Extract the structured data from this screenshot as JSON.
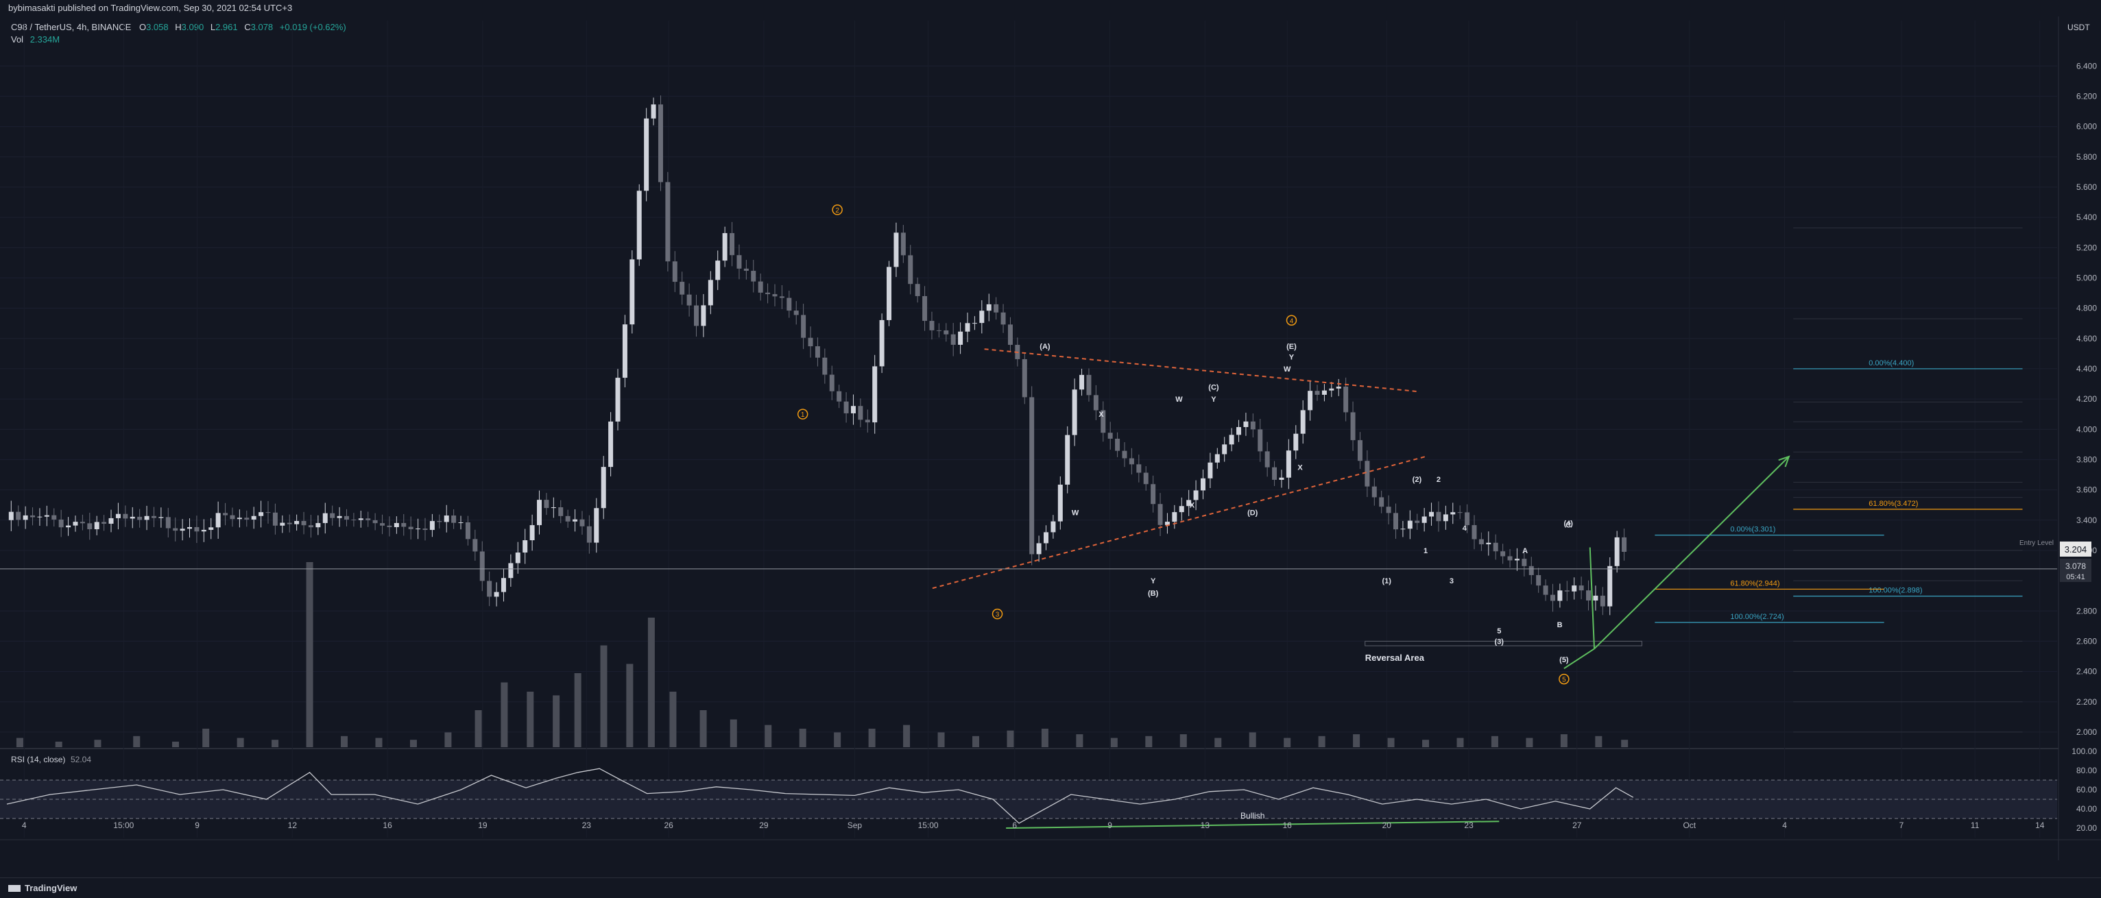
{
  "header": {
    "published": "bybimasakti published on TradingView.com, Sep 30, 2021 02:54 UTC+3"
  },
  "legend": {
    "symbol": "C98 / TetherUS, 4h, BINANCE",
    "open_label": "O",
    "open": "3.058",
    "high_label": "H",
    "high": "3.090",
    "low_label": "L",
    "low": "2.961",
    "close_label": "C",
    "close": "3.078",
    "change": "+0.019 (+0.62%)",
    "vol_label": "Vol",
    "vol": "2.334M"
  },
  "price_axis": {
    "currency": "USDT",
    "last_price": "3.078",
    "countdown": "05:41",
    "entry_price": "3.204",
    "entry_label": "Entry Level"
  },
  "footer": {
    "brand": "TradingView"
  },
  "colors": {
    "bg": "#131722",
    "up": "#d1d4dc",
    "down": "#6a6d78",
    "trendline": "#e0643a",
    "projection": "#5fbf5f",
    "fib_blue": "#3aa6c4",
    "fib_orange": "#f39c12",
    "wave_orange": "#f39c12"
  },
  "chart_data": {
    "type": "candlestick",
    "price_axis_range": [
      1.9,
      6.7
    ],
    "price_ticks": [
      "6.400",
      "6.200",
      "6.000",
      "5.800",
      "5.600",
      "5.400",
      "5.200",
      "5.000",
      "4.800",
      "4.600",
      "4.400",
      "4.200",
      "4.000",
      "3.800",
      "3.600",
      "3.400",
      "3.200",
      "2.800",
      "2.600",
      "2.400",
      "2.200",
      "2.000"
    ],
    "time_axis_range": [
      0,
      47.4
    ],
    "time_ticks": [
      {
        "t": 0.4,
        "label": "4"
      },
      {
        "t": 2.7,
        "label": "15:00"
      },
      {
        "t": 4.4,
        "label": "9"
      },
      {
        "t": 6.6,
        "label": "12"
      },
      {
        "t": 8.8,
        "label": "16"
      },
      {
        "t": 11,
        "label": "19"
      },
      {
        "t": 13.4,
        "label": "23"
      },
      {
        "t": 15.3,
        "label": "26"
      },
      {
        "t": 17.5,
        "label": "29"
      },
      {
        "t": 19.6,
        "label": "Sep"
      },
      {
        "t": 21.3,
        "label": "15:00"
      },
      {
        "t": 23.3,
        "label": "6"
      },
      {
        "t": 25.5,
        "label": "9"
      },
      {
        "t": 27.7,
        "label": "13"
      },
      {
        "t": 29.6,
        "label": "16"
      },
      {
        "t": 31.9,
        "label": "20"
      },
      {
        "t": 33.8,
        "label": "23"
      },
      {
        "t": 36.3,
        "label": "27"
      },
      {
        "t": 38.9,
        "label": "Oct"
      },
      {
        "t": 41.1,
        "label": "4"
      },
      {
        "t": 43.8,
        "label": "7"
      },
      {
        "t": 45.5,
        "label": "11"
      },
      {
        "t": 47,
        "label": "14"
      }
    ],
    "close_path": [
      [
        0,
        3.4
      ],
      [
        3.5,
        3.38
      ],
      [
        7,
        3.4
      ],
      [
        10.5,
        3.38
      ],
      [
        11.2,
        2.9
      ],
      [
        12.3,
        3.5
      ],
      [
        13.5,
        3.3
      ],
      [
        14.2,
        4.5
      ],
      [
        14.9,
        6.3
      ],
      [
        15.3,
        5.0
      ],
      [
        15.9,
        4.7
      ],
      [
        16.6,
        5.3
      ],
      [
        17.3,
        4.9
      ],
      [
        18,
        4.8
      ],
      [
        18.6,
        4.6
      ],
      [
        19.2,
        4.2
      ],
      [
        19.9,
        4.0
      ],
      [
        20.5,
        5.3
      ],
      [
        21.3,
        4.7
      ],
      [
        22,
        4.6
      ],
      [
        22.8,
        4.8
      ],
      [
        23.5,
        4.4
      ],
      [
        23.7,
        3.2
      ],
      [
        24.2,
        3.4
      ],
      [
        24.8,
        4.4
      ],
      [
        25.4,
        3.9
      ],
      [
        26.1,
        3.8
      ],
      [
        26.7,
        3.4
      ],
      [
        27.4,
        3.5
      ],
      [
        28.1,
        3.9
      ],
      [
        28.7,
        4.1
      ],
      [
        29.4,
        3.6
      ],
      [
        30.1,
        4.2
      ],
      [
        30.8,
        4.3
      ],
      [
        31.4,
        3.7
      ],
      [
        32.1,
        3.3
      ],
      [
        32.8,
        3.4
      ],
      [
        33.5,
        3.5
      ],
      [
        34.2,
        3.2
      ],
      [
        34.9,
        3.1
      ],
      [
        35.6,
        2.9
      ],
      [
        36.3,
        3.0
      ],
      [
        36.9,
        2.8
      ],
      [
        37.2,
        3.3
      ],
      [
        37.5,
        3.08
      ]
    ],
    "volume_bars": [
      [
        0.3,
        0.05
      ],
      [
        1.2,
        0.03
      ],
      [
        2.1,
        0.04
      ],
      [
        3,
        0.06
      ],
      [
        3.9,
        0.03
      ],
      [
        4.6,
        0.1
      ],
      [
        5.4,
        0.05
      ],
      [
        6.2,
        0.04
      ],
      [
        7,
        1.0
      ],
      [
        7.8,
        0.06
      ],
      [
        8.6,
        0.05
      ],
      [
        9.4,
        0.04
      ],
      [
        10.2,
        0.08
      ],
      [
        10.9,
        0.2
      ],
      [
        11.5,
        0.35
      ],
      [
        12.1,
        0.3
      ],
      [
        12.7,
        0.28
      ],
      [
        13.2,
        0.4
      ],
      [
        13.8,
        0.55
      ],
      [
        14.4,
        0.45
      ],
      [
        14.9,
        0.7
      ],
      [
        15.4,
        0.3
      ],
      [
        16.1,
        0.2
      ],
      [
        16.8,
        0.15
      ],
      [
        17.6,
        0.12
      ],
      [
        18.4,
        0.1
      ],
      [
        19.2,
        0.08
      ],
      [
        20,
        0.1
      ],
      [
        20.8,
        0.12
      ],
      [
        21.6,
        0.08
      ],
      [
        22.4,
        0.06
      ],
      [
        23.2,
        0.09
      ],
      [
        24,
        0.1
      ],
      [
        24.8,
        0.07
      ],
      [
        25.6,
        0.05
      ],
      [
        26.4,
        0.06
      ],
      [
        27.2,
        0.07
      ],
      [
        28,
        0.05
      ],
      [
        28.8,
        0.08
      ],
      [
        29.6,
        0.05
      ],
      [
        30.4,
        0.06
      ],
      [
        31.2,
        0.07
      ],
      [
        32,
        0.05
      ],
      [
        32.8,
        0.04
      ],
      [
        33.6,
        0.05
      ],
      [
        34.4,
        0.06
      ],
      [
        35.2,
        0.05
      ],
      [
        36,
        0.07
      ],
      [
        36.8,
        0.06
      ],
      [
        37.4,
        0.04
      ]
    ],
    "rsi": {
      "label": "RSI (14, close)",
      "value": "52.04",
      "ticks": [
        "100.00",
        "80.00",
        "60.00",
        "40.00",
        "20.00"
      ],
      "levels": [
        70,
        50,
        30
      ],
      "path": [
        [
          0,
          45
        ],
        [
          1,
          55
        ],
        [
          2,
          60
        ],
        [
          3,
          65
        ],
        [
          4,
          55
        ],
        [
          5,
          60
        ],
        [
          6,
          50
        ],
        [
          7,
          78
        ],
        [
          7.5,
          55
        ],
        [
          8.5,
          55
        ],
        [
          9.5,
          45
        ],
        [
          10.5,
          60
        ],
        [
          11.2,
          75
        ],
        [
          12,
          62
        ],
        [
          12.7,
          72
        ],
        [
          13.2,
          78
        ],
        [
          13.7,
          82
        ],
        [
          14.2,
          70
        ],
        [
          14.8,
          56
        ],
        [
          15.6,
          58
        ],
        [
          16.4,
          63
        ],
        [
          17.2,
          60
        ],
        [
          18,
          56
        ],
        [
          18.8,
          55
        ],
        [
          19.6,
          54
        ],
        [
          20.4,
          62
        ],
        [
          21.2,
          57
        ],
        [
          22,
          60
        ],
        [
          22.8,
          50
        ],
        [
          23.4,
          25
        ],
        [
          24,
          40
        ],
        [
          24.6,
          55
        ],
        [
          25.4,
          50
        ],
        [
          26.2,
          45
        ],
        [
          27,
          50
        ],
        [
          27.8,
          58
        ],
        [
          28.6,
          60
        ],
        [
          29.4,
          50
        ],
        [
          30.2,
          62
        ],
        [
          31,
          55
        ],
        [
          31.8,
          45
        ],
        [
          32.6,
          50
        ],
        [
          33.4,
          45
        ],
        [
          34.2,
          50
        ],
        [
          35,
          40
        ],
        [
          35.8,
          48
        ],
        [
          36.6,
          40
        ],
        [
          37.2,
          62
        ],
        [
          37.6,
          52
        ]
      ]
    },
    "trendlines": [
      {
        "kind": "triangle-top",
        "from": [
          22.6,
          4.53
        ],
        "to": [
          32.6,
          4.25
        ]
      },
      {
        "kind": "triangle-bottom",
        "from": [
          21.4,
          2.95
        ],
        "to": [
          32.8,
          3.82
        ]
      },
      {
        "kind": "projection",
        "from": [
          36.0,
          2.42
        ],
        "to": [
          36.7,
          2.55
        ]
      },
      {
        "kind": "projection",
        "from": [
          36.7,
          2.55
        ],
        "to": [
          41.2,
          3.82
        ]
      },
      {
        "kind": "projection-down",
        "from": [
          36.6,
          3.22
        ],
        "to": [
          36.7,
          2.55
        ]
      }
    ],
    "rsi_divergence": {
      "from": [
        23.1,
        20
      ],
      "to": [
        34.5,
        27
      ],
      "label": "Bullish"
    },
    "reversal_area": {
      "label": "Reversal Area",
      "time": [
        31.4,
        37.8
      ],
      "price": [
        2.57,
        2.6
      ]
    },
    "fib_upper": {
      "time": [
        41.3,
        46.6
      ],
      "levels": [
        {
          "price": 4.4,
          "label": "0.00%(4.400)",
          "color": "#3aa6c4"
        },
        {
          "price": 3.472,
          "label": "61.80%(3.472)",
          "color": "#f39c12"
        },
        {
          "price": 2.898,
          "label": "100.00%(2.898)",
          "color": "#3aa6c4"
        }
      ],
      "faint_levels": [
        5.33,
        4.73,
        4.18,
        4.05,
        3.85,
        3.65,
        3.55,
        3.2,
        3.0,
        2.6,
        2.4,
        2.2,
        2.0
      ]
    },
    "fib_lower": {
      "time": [
        38.1,
        43.4
      ],
      "levels": [
        {
          "price": 3.301,
          "label": "0.00%(3.301)",
          "color": "#3aa6c4"
        },
        {
          "price": 2.944,
          "label": "61.80%(2.944)",
          "color": "#f39c12"
        },
        {
          "price": 2.724,
          "label": "100.00%(2.724)",
          "color": "#3aa6c4"
        }
      ]
    },
    "wave_labels": [
      {
        "t": 18.4,
        "p": 4.1,
        "text": "1",
        "color": "orange",
        "circled": true
      },
      {
        "t": 19.2,
        "p": 5.45,
        "text": "2",
        "color": "orange",
        "circled": true
      },
      {
        "t": 22.9,
        "p": 2.78,
        "text": "3",
        "color": "orange",
        "circled": true
      },
      {
        "t": 29.7,
        "p": 4.72,
        "text": "4",
        "color": "orange",
        "circled": true
      },
      {
        "t": 36.0,
        "p": 2.35,
        "text": "5",
        "color": "orange",
        "circled": true
      },
      {
        "t": 24.0,
        "p": 4.55,
        "text": "(A)",
        "color": "white"
      },
      {
        "t": 26.5,
        "p": 2.92,
        "text": "(B)",
        "color": "white"
      },
      {
        "t": 27.9,
        "p": 4.28,
        "text": "(C)",
        "color": "white"
      },
      {
        "t": 28.8,
        "p": 3.45,
        "text": "(D)",
        "color": "white"
      },
      {
        "t": 29.7,
        "p": 4.55,
        "text": "(E)",
        "color": "white"
      },
      {
        "t": 24.7,
        "p": 3.45,
        "text": "W",
        "color": "white"
      },
      {
        "t": 25.3,
        "p": 4.1,
        "text": "X",
        "color": "white"
      },
      {
        "t": 26.5,
        "p": 3.0,
        "text": "Y",
        "color": "white"
      },
      {
        "t": 27.1,
        "p": 4.2,
        "text": "W",
        "color": "white"
      },
      {
        "t": 27.4,
        "p": 3.5,
        "text": "X",
        "color": "white"
      },
      {
        "t": 27.9,
        "p": 4.2,
        "text": "Y",
        "color": "white"
      },
      {
        "t": 29.6,
        "p": 4.4,
        "text": "W",
        "color": "white"
      },
      {
        "t": 29.9,
        "p": 3.75,
        "text": "X",
        "color": "white"
      },
      {
        "t": 29.7,
        "p": 4.48,
        "text": "Y",
        "color": "white"
      },
      {
        "t": 31.9,
        "p": 3.0,
        "text": "(1)",
        "color": "white"
      },
      {
        "t": 32.6,
        "p": 3.67,
        "text": "(2)",
        "color": "white"
      },
      {
        "t": 34.5,
        "p": 2.6,
        "text": "(3)",
        "color": "white"
      },
      {
        "t": 36.1,
        "p": 3.38,
        "text": "(4)",
        "color": "white"
      },
      {
        "t": 36.0,
        "p": 2.48,
        "text": "(5)",
        "color": "white"
      },
      {
        "t": 32.8,
        "p": 3.2,
        "text": "1",
        "color": "white"
      },
      {
        "t": 33.1,
        "p": 3.67,
        "text": "2",
        "color": "white"
      },
      {
        "t": 33.4,
        "p": 3.0,
        "text": "3",
        "color": "white"
      },
      {
        "t": 33.7,
        "p": 3.35,
        "text": "4",
        "color": "white"
      },
      {
        "t": 34.5,
        "p": 2.67,
        "text": "5",
        "color": "white"
      },
      {
        "t": 35.1,
        "p": 3.2,
        "text": "A",
        "color": "white"
      },
      {
        "t": 35.9,
        "p": 2.71,
        "text": "B",
        "color": "white"
      },
      {
        "t": 36.1,
        "p": 3.37,
        "text": "C",
        "color": "white"
      }
    ]
  }
}
